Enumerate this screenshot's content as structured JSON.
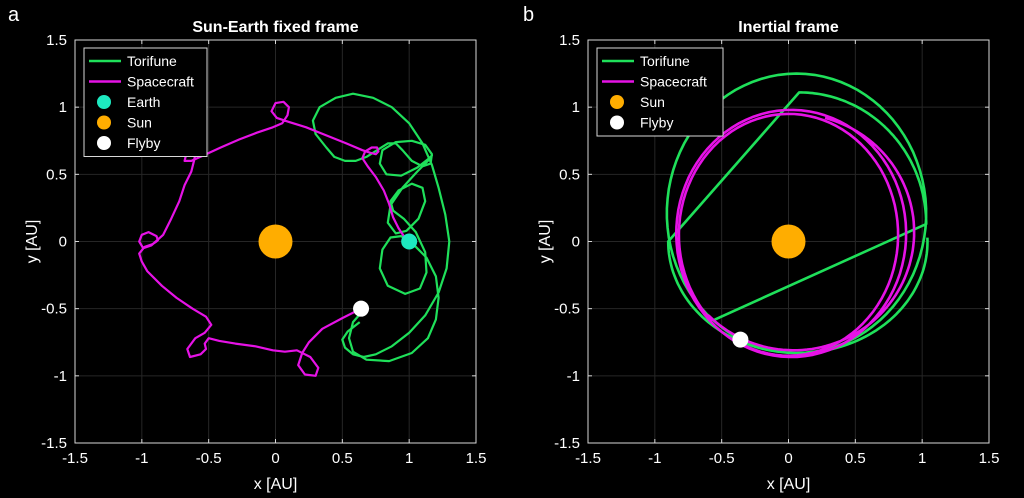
{
  "panels": [
    {
      "letter": "a",
      "title": "Sun-Earth fixed frame",
      "xlabel": "x [AU]",
      "ylabel": "y [AU]"
    },
    {
      "letter": "b",
      "title": "Inertial frame",
      "xlabel": "x [AU]",
      "ylabel": "y [AU]"
    }
  ],
  "chart_data": [
    {
      "type": "line",
      "title": "Sun-Earth fixed frame",
      "xlabel": "x [AU]",
      "ylabel": "y [AU]",
      "xlim": [
        -1.5,
        1.5
      ],
      "ylim": [
        -1.5,
        1.5
      ],
      "xticks": [
        "-1.5",
        "-1",
        "-0.5",
        "0",
        "0.5",
        "1",
        "1.5"
      ],
      "yticks": [
        "1.5",
        "1",
        "0.5",
        "0",
        "-0.5",
        "-1",
        "-1.5"
      ],
      "grid": true,
      "legend_position": "top-left",
      "colors": {
        "torifune": "#1fe05a",
        "spacecraft": "#e612e6",
        "earth": "#1de9c0",
        "sun": "#ffad00",
        "flyby": "#ffffff"
      },
      "legend": [
        "Torifune",
        "Spacecraft",
        "Earth",
        "Sun",
        "Flyby"
      ],
      "series": [
        {
          "name": "Torifune",
          "kind": "line",
          "x": [
            0.65,
            0.58,
            0.55,
            0.58,
            0.68,
            0.85,
            1.02,
            1.14,
            1.2,
            1.22,
            1.2,
            1.13,
            1.03,
            0.94,
            0.86,
            0.8,
            0.78,
            0.84,
            0.97,
            1.08,
            1.13,
            1.12,
            1.05,
            0.96,
            0.88,
            0.86,
            0.92,
            1.02,
            1.1,
            1.12,
            1.07,
            0.98,
            0.9,
            0.84,
            0.86,
            0.95,
            1.06,
            1.14,
            1.17,
            1.15,
            1.06,
            0.94,
            0.83,
            0.78,
            0.8,
            0.9,
            1.02,
            1.12,
            1.17,
            1.16,
            1.1,
            1.02,
            0.95,
            0.9,
            0.84,
            0.76,
            0.68,
            0.6,
            0.52,
            0.44,
            0.38,
            0.3,
            0.28,
            0.33,
            0.45,
            0.58,
            0.73,
            0.87,
            1.0,
            1.1,
            1.17,
            1.22,
            1.27,
            1.3,
            1.28,
            1.22,
            1.12,
            1.0,
            0.87,
            0.75,
            0.66,
            0.58,
            0.52,
            0.5,
            0.54,
            0.63
          ],
          "y": [
            -0.52,
            -0.6,
            -0.72,
            -0.82,
            -0.88,
            -0.89,
            -0.83,
            -0.72,
            -0.58,
            -0.42,
            -0.26,
            -0.12,
            -0.02,
            0.04,
            0.03,
            -0.06,
            -0.2,
            -0.33,
            -0.39,
            -0.35,
            -0.23,
            -0.08,
            0.07,
            0.17,
            0.23,
            0.3,
            0.38,
            0.43,
            0.4,
            0.3,
            0.17,
            0.08,
            0.06,
            0.14,
            0.27,
            0.4,
            0.52,
            0.6,
            0.64,
            0.62,
            0.55,
            0.49,
            0.5,
            0.58,
            0.68,
            0.74,
            0.75,
            0.72,
            0.65,
            0.58,
            0.56,
            0.6,
            0.68,
            0.73,
            0.73,
            0.68,
            0.63,
            0.6,
            0.6,
            0.63,
            0.7,
            0.8,
            0.9,
            1.0,
            1.07,
            1.1,
            1.07,
            1.0,
            0.88,
            0.73,
            0.57,
            0.4,
            0.2,
            0.0,
            -0.2,
            -0.38,
            -0.55,
            -0.68,
            -0.78,
            -0.84,
            -0.86,
            -0.84,
            -0.79,
            -0.73,
            -0.67,
            -0.6
          ]
        },
        {
          "name": "Spacecraft",
          "kind": "line",
          "x": [
            0.64,
            0.5,
            0.35,
            0.25,
            0.2,
            0.17,
            0.22,
            0.3,
            0.32,
            0.26,
            0.16,
            0.07,
            -0.02,
            -0.15,
            -0.3,
            -0.42,
            -0.5,
            -0.53,
            -0.52,
            -0.56,
            -0.64,
            -0.66,
            -0.6,
            -0.53,
            -0.48,
            -0.52,
            -0.62,
            -0.74,
            -0.85,
            -0.96,
            -1.0,
            -1.02,
            -0.98,
            -0.92,
            -0.89,
            -0.88,
            -0.89,
            -0.95,
            -1.0,
            -1.02,
            -0.99,
            -0.93,
            -0.84,
            -0.78,
            -0.72,
            -0.68,
            -0.63,
            -0.61,
            -0.6,
            -0.62,
            -0.67,
            -0.68,
            -0.63,
            -0.54,
            -0.41,
            -0.27,
            -0.14,
            -0.02,
            0.05,
            0.09,
            0.1,
            0.06,
            0.0,
            -0.03,
            0.01,
            0.1,
            0.23,
            0.38,
            0.53,
            0.65,
            0.71,
            0.75,
            0.77,
            0.76,
            0.72,
            0.67,
            0.65,
            0.69,
            0.75,
            0.81,
            0.85,
            0.88,
            0.92,
            0.96,
            1.0
          ],
          "y": [
            -0.5,
            -0.57,
            -0.65,
            -0.75,
            -0.83,
            -0.92,
            -0.99,
            -1.0,
            -0.94,
            -0.86,
            -0.81,
            -0.82,
            -0.81,
            -0.78,
            -0.76,
            -0.74,
            -0.72,
            -0.76,
            -0.8,
            -0.84,
            -0.86,
            -0.8,
            -0.72,
            -0.68,
            -0.62,
            -0.56,
            -0.5,
            -0.42,
            -0.33,
            -0.22,
            -0.15,
            -0.09,
            -0.04,
            -0.02,
            0.0,
            0.01,
            0.04,
            0.07,
            0.05,
            0.0,
            -0.05,
            -0.03,
            0.05,
            0.17,
            0.3,
            0.42,
            0.52,
            0.6,
            0.65,
            0.68,
            0.64,
            0.6,
            0.6,
            0.64,
            0.7,
            0.76,
            0.81,
            0.85,
            0.88,
            0.94,
            1.0,
            1.04,
            1.03,
            0.97,
            0.92,
            0.89,
            0.85,
            0.79,
            0.73,
            0.68,
            0.66,
            0.65,
            0.67,
            0.7,
            0.7,
            0.67,
            0.62,
            0.56,
            0.48,
            0.38,
            0.28,
            0.18,
            0.1,
            0.04,
            0.0
          ]
        },
        {
          "name": "Earth",
          "kind": "marker",
          "x": [
            1.0
          ],
          "y": [
            0.0
          ]
        },
        {
          "name": "Sun",
          "kind": "marker",
          "x": [
            0.0
          ],
          "y": [
            0.0
          ]
        },
        {
          "name": "Flyby",
          "kind": "marker",
          "x": [
            0.64
          ],
          "y": [
            -0.5
          ]
        }
      ]
    },
    {
      "type": "line",
      "title": "Inertial frame",
      "xlabel": "x [AU]",
      "ylabel": "y [AU]",
      "xlim": [
        -1.5,
        1.5
      ],
      "ylim": [
        -1.5,
        1.5
      ],
      "xticks": [
        "-1.5",
        "-1",
        "-0.5",
        "0",
        "0.5",
        "1",
        "1.5"
      ],
      "yticks": [
        "1.5",
        "1",
        "0.5",
        "0",
        "-0.5",
        "-1",
        "-1.5"
      ],
      "grid": true,
      "legend_position": "top-left",
      "colors": {
        "torifune": "#1fe05a",
        "spacecraft": "#e612e6",
        "sun": "#ffad00",
        "flyby": "#ffffff"
      },
      "legend": [
        "Torifune",
        "Spacecraft",
        "Sun",
        "Flyby"
      ],
      "series": [
        {
          "name": "Torifune",
          "kind": "loops",
          "loops": [
            {
              "cx": 0.06,
              "cy": 0.21,
              "rx": 0.97,
              "ry": 1.04,
              "start_deg": 230,
              "end_deg": 590
            },
            {
              "cx": 0.08,
              "cy": 0.13,
              "rx": 0.95,
              "ry": 0.98,
              "start_deg": 0,
              "end_deg": 90
            },
            {
              "cx": 0.07,
              "cy": 0.0,
              "rx": 0.97,
              "ry": 0.83,
              "start_deg": 180,
              "end_deg": 362
            }
          ]
        },
        {
          "name": "Spacecraft",
          "kind": "loops",
          "loops": [
            {
              "cx": 0.0,
              "cy": 0.05,
              "rx": 0.82,
              "ry": 0.9,
              "start_deg": 240,
              "end_deg": 585
            },
            {
              "cx": 0.02,
              "cy": 0.06,
              "rx": 0.86,
              "ry": 0.92,
              "start_deg": 225,
              "end_deg": 585
            },
            {
              "cx": 0.04,
              "cy": 0.07,
              "rx": 0.9,
              "ry": 0.88,
              "start_deg": 225,
              "end_deg": 435
            }
          ]
        },
        {
          "name": "Sun",
          "kind": "marker",
          "x": [
            0.0
          ],
          "y": [
            0.0
          ]
        },
        {
          "name": "Flyby",
          "kind": "marker",
          "x": [
            -0.36
          ],
          "y": [
            -0.73
          ]
        }
      ]
    }
  ]
}
